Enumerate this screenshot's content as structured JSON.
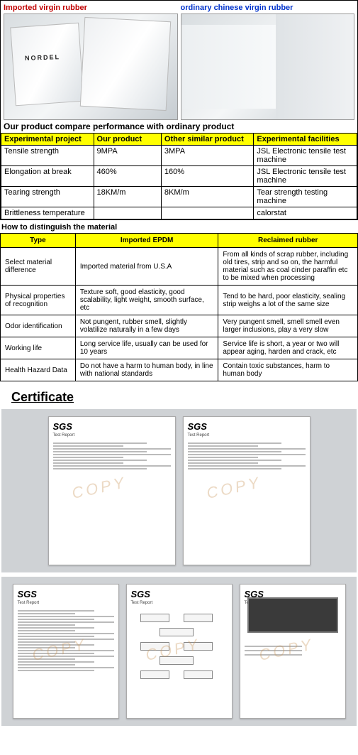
{
  "photos": {
    "left_label": "Imported virgin rubber",
    "right_label": "ordinary chinese virgin rubber",
    "nordel_text": "NORDEL"
  },
  "compare": {
    "title": "Our product compare performance with ordinary product",
    "headers": [
      "Experimental project",
      "Our product",
      "Other similar product",
      "Experimental facilities"
    ],
    "rows": [
      [
        "Tensile strength",
        "9MPA",
        "3MPA",
        " JSL Electronic tensile test machine"
      ],
      [
        "Elongation at break",
        "460%",
        "160%",
        " JSL Electronic tensile test machine"
      ],
      [
        "Tearing strength",
        "18KM/m",
        "8KM/m",
        "Tear strength testing machine"
      ],
      [
        "Brittleness temperature",
        "",
        "",
        "calorstat"
      ]
    ],
    "col_widths": [
      "26%",
      "19%",
      "26%",
      "29%"
    ]
  },
  "dist": {
    "title": "How to distinguish the material",
    "headers": [
      "Type",
      "Imported EPDM",
      "Reclaimed rubber"
    ],
    "rows": [
      [
        "Select material difference",
        "Imported material from U.S.A",
        "From all kinds of scrap rubber, including old tires, strip and so on, the harmful material such as coal cinder paraffin etc to be mixed when processing"
      ],
      [
        "Physical properties of recognition",
        "Texture soft, good elasticity, good scalability, light weight, smooth surface, etc",
        "Tend to be hard, poor elasticity, sealing strip weighs a lot of the same size"
      ],
      [
        "Odor identification",
        "Not pungent, rubber smell, slightly volatilize naturally in a few days",
        "Very pungent smell, smell smell even larger inclusions, play a very slow"
      ],
      [
        "Working life",
        "Long service life, usually can be used for 10 years",
        "Service life is short, a year or two will appear aging, harden and crack, etc"
      ],
      [
        "Health Hazard Data",
        "Do not have a harm to human body, in line with national standards",
        "Contain toxic substances, harm to human body"
      ]
    ],
    "col_widths": [
      "21%",
      "40%",
      "39%"
    ]
  },
  "certificate": {
    "title": "Certificate",
    "sgs_label": "SGS",
    "report_label": "Test Report",
    "watermark": "COPY",
    "panel_bg": "#cfd2d5",
    "row1": {
      "doc_width": 180,
      "doc_height": 210,
      "count": 2
    },
    "row2": {
      "doc_width": 150,
      "doc_height": 190,
      "count": 3
    }
  },
  "colors": {
    "header_bg": "#ffff00",
    "border": "#000000",
    "red": "#c00000",
    "blue": "#0033cc"
  }
}
